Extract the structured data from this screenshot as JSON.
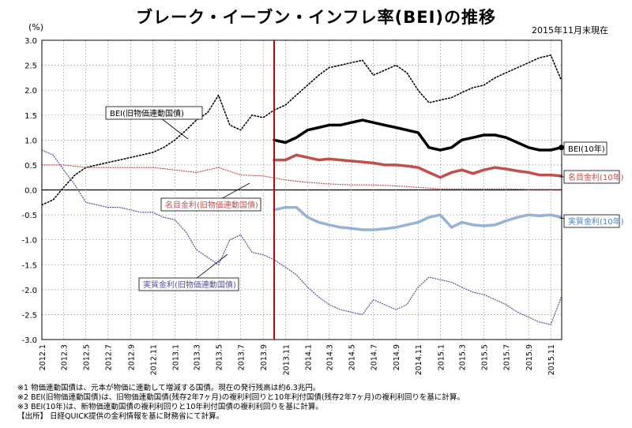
{
  "header": {
    "title": "ブレーク・イーブン・インフレ率(BEI)の推移",
    "date_note": "2015年11月末現在",
    "unit": "(%)"
  },
  "colors": {
    "bei_new": "#000000",
    "nominal_new": "#c0504d",
    "real_new": "#95b3d7",
    "bei_old": "#000000",
    "nominal_old": "#c0504d",
    "real_old": "#4f4f9f",
    "divider": "#c00000",
    "grid": "#999999"
  },
  "chart_data": {
    "type": "line",
    "title": "ブレーク・イーブン・インフレ率(BEI)の推移",
    "ylabel": "(%)",
    "ylim": [
      -3.0,
      3.0
    ],
    "y_ticks": [
      "3.0",
      "2.5",
      "2.0",
      "1.5",
      "1.0",
      "0.5",
      "0.0",
      "-0.5",
      "-1.0",
      "-1.5",
      "-2.0",
      "-2.5",
      "-3.0"
    ],
    "x_ticks": [
      "2012.1",
      "2012.3",
      "2012.5",
      "2012.7",
      "2012.9",
      "2012.11",
      "2013.1",
      "2013.3",
      "2013.5",
      "2013.7",
      "2013.9",
      "2013.11",
      "2014.1",
      "2014.3",
      "2014.5",
      "2014.7",
      "2014.9",
      "2014.11",
      "2015.1",
      "2015.3",
      "2015.5",
      "2015.7",
      "2015.9",
      "2015.11"
    ],
    "x_range": [
      "2012-01-01",
      "2015-12-01"
    ],
    "divider_date": "2013-10-01",
    "grid": true,
    "series": [
      {
        "name": "BEI(旧物価連動国債)",
        "style": "dotted",
        "points": [
          [
            "2012-01-01",
            -0.3
          ],
          [
            "2012-02-01",
            -0.2
          ],
          [
            "2012-03-01",
            0.05
          ],
          [
            "2012-04-01",
            0.3
          ],
          [
            "2012-05-01",
            0.45
          ],
          [
            "2012-06-01",
            0.5
          ],
          [
            "2012-07-01",
            0.55
          ],
          [
            "2012-08-01",
            0.6
          ],
          [
            "2012-09-01",
            0.65
          ],
          [
            "2012-10-01",
            0.7
          ],
          [
            "2012-11-01",
            0.75
          ],
          [
            "2012-12-01",
            0.85
          ],
          [
            "2013-01-01",
            1.0
          ],
          [
            "2013-02-01",
            1.2
          ],
          [
            "2013-03-01",
            1.4
          ],
          [
            "2013-04-01",
            1.55
          ],
          [
            "2013-05-01",
            1.9
          ],
          [
            "2013-06-01",
            1.3
          ],
          [
            "2013-07-01",
            1.2
          ],
          [
            "2013-08-01",
            1.5
          ],
          [
            "2013-09-01",
            1.45
          ],
          [
            "2013-10-01",
            1.6
          ],
          [
            "2013-11-01",
            1.7
          ],
          [
            "2013-12-01",
            1.9
          ],
          [
            "2014-01-01",
            2.1
          ],
          [
            "2014-02-01",
            2.3
          ],
          [
            "2014-03-01",
            2.45
          ],
          [
            "2014-04-01",
            2.5
          ],
          [
            "2014-05-01",
            2.55
          ],
          [
            "2014-06-01",
            2.6
          ],
          [
            "2014-07-01",
            2.3
          ],
          [
            "2014-08-01",
            2.4
          ],
          [
            "2014-09-01",
            2.5
          ],
          [
            "2014-10-01",
            2.35
          ],
          [
            "2014-11-01",
            2.0
          ],
          [
            "2014-12-01",
            1.75
          ],
          [
            "2015-01-01",
            1.8
          ],
          [
            "2015-02-01",
            1.85
          ],
          [
            "2015-03-01",
            1.95
          ],
          [
            "2015-04-01",
            2.05
          ],
          [
            "2015-05-01",
            2.1
          ],
          [
            "2015-06-01",
            2.25
          ],
          [
            "2015-07-01",
            2.35
          ],
          [
            "2015-08-01",
            2.45
          ],
          [
            "2015-09-01",
            2.55
          ],
          [
            "2015-10-01",
            2.65
          ],
          [
            "2015-11-01",
            2.7
          ],
          [
            "2015-11-30",
            2.2
          ]
        ]
      },
      {
        "name": "名目金利(旧物価連動国債)",
        "style": "dotted",
        "points": [
          [
            "2012-01-01",
            0.5
          ],
          [
            "2012-03-01",
            0.5
          ],
          [
            "2012-05-01",
            0.45
          ],
          [
            "2012-07-01",
            0.45
          ],
          [
            "2012-09-01",
            0.45
          ],
          [
            "2012-11-01",
            0.45
          ],
          [
            "2013-01-01",
            0.4
          ],
          [
            "2013-03-01",
            0.35
          ],
          [
            "2013-05-01",
            0.45
          ],
          [
            "2013-07-01",
            0.3
          ],
          [
            "2013-09-01",
            0.28
          ],
          [
            "2013-11-01",
            0.2
          ],
          [
            "2014-01-01",
            0.15
          ],
          [
            "2014-03-01",
            0.12
          ],
          [
            "2014-05-01",
            0.1
          ],
          [
            "2014-07-01",
            0.1
          ],
          [
            "2014-09-01",
            0.08
          ],
          [
            "2014-11-01",
            0.05
          ],
          [
            "2015-01-01",
            0.02
          ],
          [
            "2015-03-01",
            0.02
          ],
          [
            "2015-05-01",
            0.02
          ],
          [
            "2015-07-01",
            0.02
          ],
          [
            "2015-09-01",
            0.01
          ],
          [
            "2015-11-30",
            0.01
          ]
        ]
      },
      {
        "name": "実質金利(旧物価連動国債)",
        "style": "dotted",
        "points": [
          [
            "2012-01-01",
            0.8
          ],
          [
            "2012-02-01",
            0.7
          ],
          [
            "2012-03-01",
            0.4
          ],
          [
            "2012-04-01",
            0.1
          ],
          [
            "2012-05-01",
            -0.25
          ],
          [
            "2012-06-01",
            -0.3
          ],
          [
            "2012-07-01",
            -0.35
          ],
          [
            "2012-08-01",
            -0.35
          ],
          [
            "2012-09-01",
            -0.4
          ],
          [
            "2012-10-01",
            -0.45
          ],
          [
            "2012-11-01",
            -0.45
          ],
          [
            "2012-12-01",
            -0.55
          ],
          [
            "2013-01-01",
            -0.6
          ],
          [
            "2013-02-01",
            -0.85
          ],
          [
            "2013-03-01",
            -1.2
          ],
          [
            "2013-04-01",
            -1.35
          ],
          [
            "2013-05-01",
            -1.5
          ],
          [
            "2013-06-01",
            -1.0
          ],
          [
            "2013-07-01",
            -0.9
          ],
          [
            "2013-08-01",
            -1.25
          ],
          [
            "2013-09-01",
            -1.3
          ],
          [
            "2013-10-01",
            -1.4
          ],
          [
            "2013-11-01",
            -1.55
          ],
          [
            "2013-12-01",
            -1.7
          ],
          [
            "2014-01-01",
            -1.95
          ],
          [
            "2014-02-01",
            -2.15
          ],
          [
            "2014-03-01",
            -2.3
          ],
          [
            "2014-04-01",
            -2.4
          ],
          [
            "2014-05-01",
            -2.45
          ],
          [
            "2014-06-01",
            -2.5
          ],
          [
            "2014-07-01",
            -2.2
          ],
          [
            "2014-08-01",
            -2.3
          ],
          [
            "2014-09-01",
            -2.4
          ],
          [
            "2014-10-01",
            -2.3
          ],
          [
            "2014-11-01",
            -1.95
          ],
          [
            "2014-12-01",
            -1.75
          ],
          [
            "2015-01-01",
            -1.8
          ],
          [
            "2015-02-01",
            -1.85
          ],
          [
            "2015-03-01",
            -1.95
          ],
          [
            "2015-04-01",
            -2.05
          ],
          [
            "2015-05-01",
            -2.1
          ],
          [
            "2015-06-01",
            -2.2
          ],
          [
            "2015-07-01",
            -2.3
          ],
          [
            "2015-08-01",
            -2.45
          ],
          [
            "2015-09-01",
            -2.55
          ],
          [
            "2015-10-01",
            -2.65
          ],
          [
            "2015-11-01",
            -2.7
          ],
          [
            "2015-11-30",
            -2.15
          ]
        ]
      },
      {
        "name": "BEI(10年)",
        "style": "solid",
        "points": [
          [
            "2013-10-01",
            1.0
          ],
          [
            "2013-11-01",
            0.95
          ],
          [
            "2013-12-01",
            1.05
          ],
          [
            "2014-01-01",
            1.2
          ],
          [
            "2014-02-01",
            1.25
          ],
          [
            "2014-03-01",
            1.3
          ],
          [
            "2014-04-01",
            1.3
          ],
          [
            "2014-05-01",
            1.35
          ],
          [
            "2014-06-01",
            1.4
          ],
          [
            "2014-07-01",
            1.35
          ],
          [
            "2014-08-01",
            1.3
          ],
          [
            "2014-09-01",
            1.25
          ],
          [
            "2014-10-01",
            1.2
          ],
          [
            "2014-11-01",
            1.15
          ],
          [
            "2014-12-01",
            0.85
          ],
          [
            "2015-01-01",
            0.8
          ],
          [
            "2015-02-01",
            0.85
          ],
          [
            "2015-03-01",
            1.0
          ],
          [
            "2015-04-01",
            1.05
          ],
          [
            "2015-05-01",
            1.1
          ],
          [
            "2015-06-01",
            1.1
          ],
          [
            "2015-07-01",
            1.05
          ],
          [
            "2015-08-01",
            0.95
          ],
          [
            "2015-09-01",
            0.85
          ],
          [
            "2015-10-01",
            0.8
          ],
          [
            "2015-11-01",
            0.8
          ],
          [
            "2015-11-30",
            0.85
          ]
        ]
      },
      {
        "name": "名目金利(10年)",
        "style": "solid",
        "points": [
          [
            "2013-10-01",
            0.6
          ],
          [
            "2013-11-01",
            0.6
          ],
          [
            "2013-12-01",
            0.7
          ],
          [
            "2014-01-01",
            0.65
          ],
          [
            "2014-02-01",
            0.6
          ],
          [
            "2014-03-01",
            0.62
          ],
          [
            "2014-04-01",
            0.6
          ],
          [
            "2014-05-01",
            0.58
          ],
          [
            "2014-06-01",
            0.56
          ],
          [
            "2014-07-01",
            0.54
          ],
          [
            "2014-08-01",
            0.5
          ],
          [
            "2014-09-01",
            0.5
          ],
          [
            "2014-10-01",
            0.48
          ],
          [
            "2014-11-01",
            0.45
          ],
          [
            "2014-12-01",
            0.35
          ],
          [
            "2015-01-01",
            0.25
          ],
          [
            "2015-02-01",
            0.35
          ],
          [
            "2015-03-01",
            0.4
          ],
          [
            "2015-04-01",
            0.33
          ],
          [
            "2015-05-01",
            0.4
          ],
          [
            "2015-06-01",
            0.45
          ],
          [
            "2015-07-01",
            0.42
          ],
          [
            "2015-08-01",
            0.38
          ],
          [
            "2015-09-01",
            0.35
          ],
          [
            "2015-10-01",
            0.3
          ],
          [
            "2015-11-01",
            0.3
          ],
          [
            "2015-11-30",
            0.28
          ]
        ]
      },
      {
        "name": "実質金利(10年)",
        "style": "solid",
        "points": [
          [
            "2013-10-01",
            -0.4
          ],
          [
            "2013-11-01",
            -0.35
          ],
          [
            "2013-12-01",
            -0.35
          ],
          [
            "2014-01-01",
            -0.55
          ],
          [
            "2014-02-01",
            -0.65
          ],
          [
            "2014-03-01",
            -0.7
          ],
          [
            "2014-04-01",
            -0.75
          ],
          [
            "2014-05-01",
            -0.77
          ],
          [
            "2014-06-01",
            -0.8
          ],
          [
            "2014-07-01",
            -0.8
          ],
          [
            "2014-08-01",
            -0.78
          ],
          [
            "2014-09-01",
            -0.75
          ],
          [
            "2014-10-01",
            -0.7
          ],
          [
            "2014-11-01",
            -0.65
          ],
          [
            "2014-12-01",
            -0.55
          ],
          [
            "2015-01-01",
            -0.5
          ],
          [
            "2015-02-01",
            -0.75
          ],
          [
            "2015-03-01",
            -0.65
          ],
          [
            "2015-04-01",
            -0.7
          ],
          [
            "2015-05-01",
            -0.72
          ],
          [
            "2015-06-01",
            -0.7
          ],
          [
            "2015-07-01",
            -0.62
          ],
          [
            "2015-08-01",
            -0.55
          ],
          [
            "2015-09-01",
            -0.5
          ],
          [
            "2015-10-01",
            -0.52
          ],
          [
            "2015-11-01",
            -0.5
          ],
          [
            "2015-11-30",
            -0.55
          ]
        ]
      }
    ],
    "annotations": [
      "BEI(旧物価連動国債)",
      "名目金利(旧物価連動国債)",
      "実質金利(旧物価連動国債)",
      "BEI(10年)",
      "名目金利(10年)",
      "実質金利(10年)"
    ]
  },
  "notes": [
    "※1 物価連動国債は、元本が物価に連動して増減する国債。現在の発行残高は約6.3兆円。",
    "※2 BEI(旧物価連動国債)は、旧物価連動国債(残存2年7ヶ月)の複利利回りと10年利付国債(残存2年7ヶ月)の複利利回りを基に計算。",
    "※3 BEI(10年)は、新物価連動国債の複利利回りと10年利付国債の複利利回りを基に計算。",
    "【出所】 日経QUICK提供の金利情報を基に財務省にて計算。"
  ]
}
